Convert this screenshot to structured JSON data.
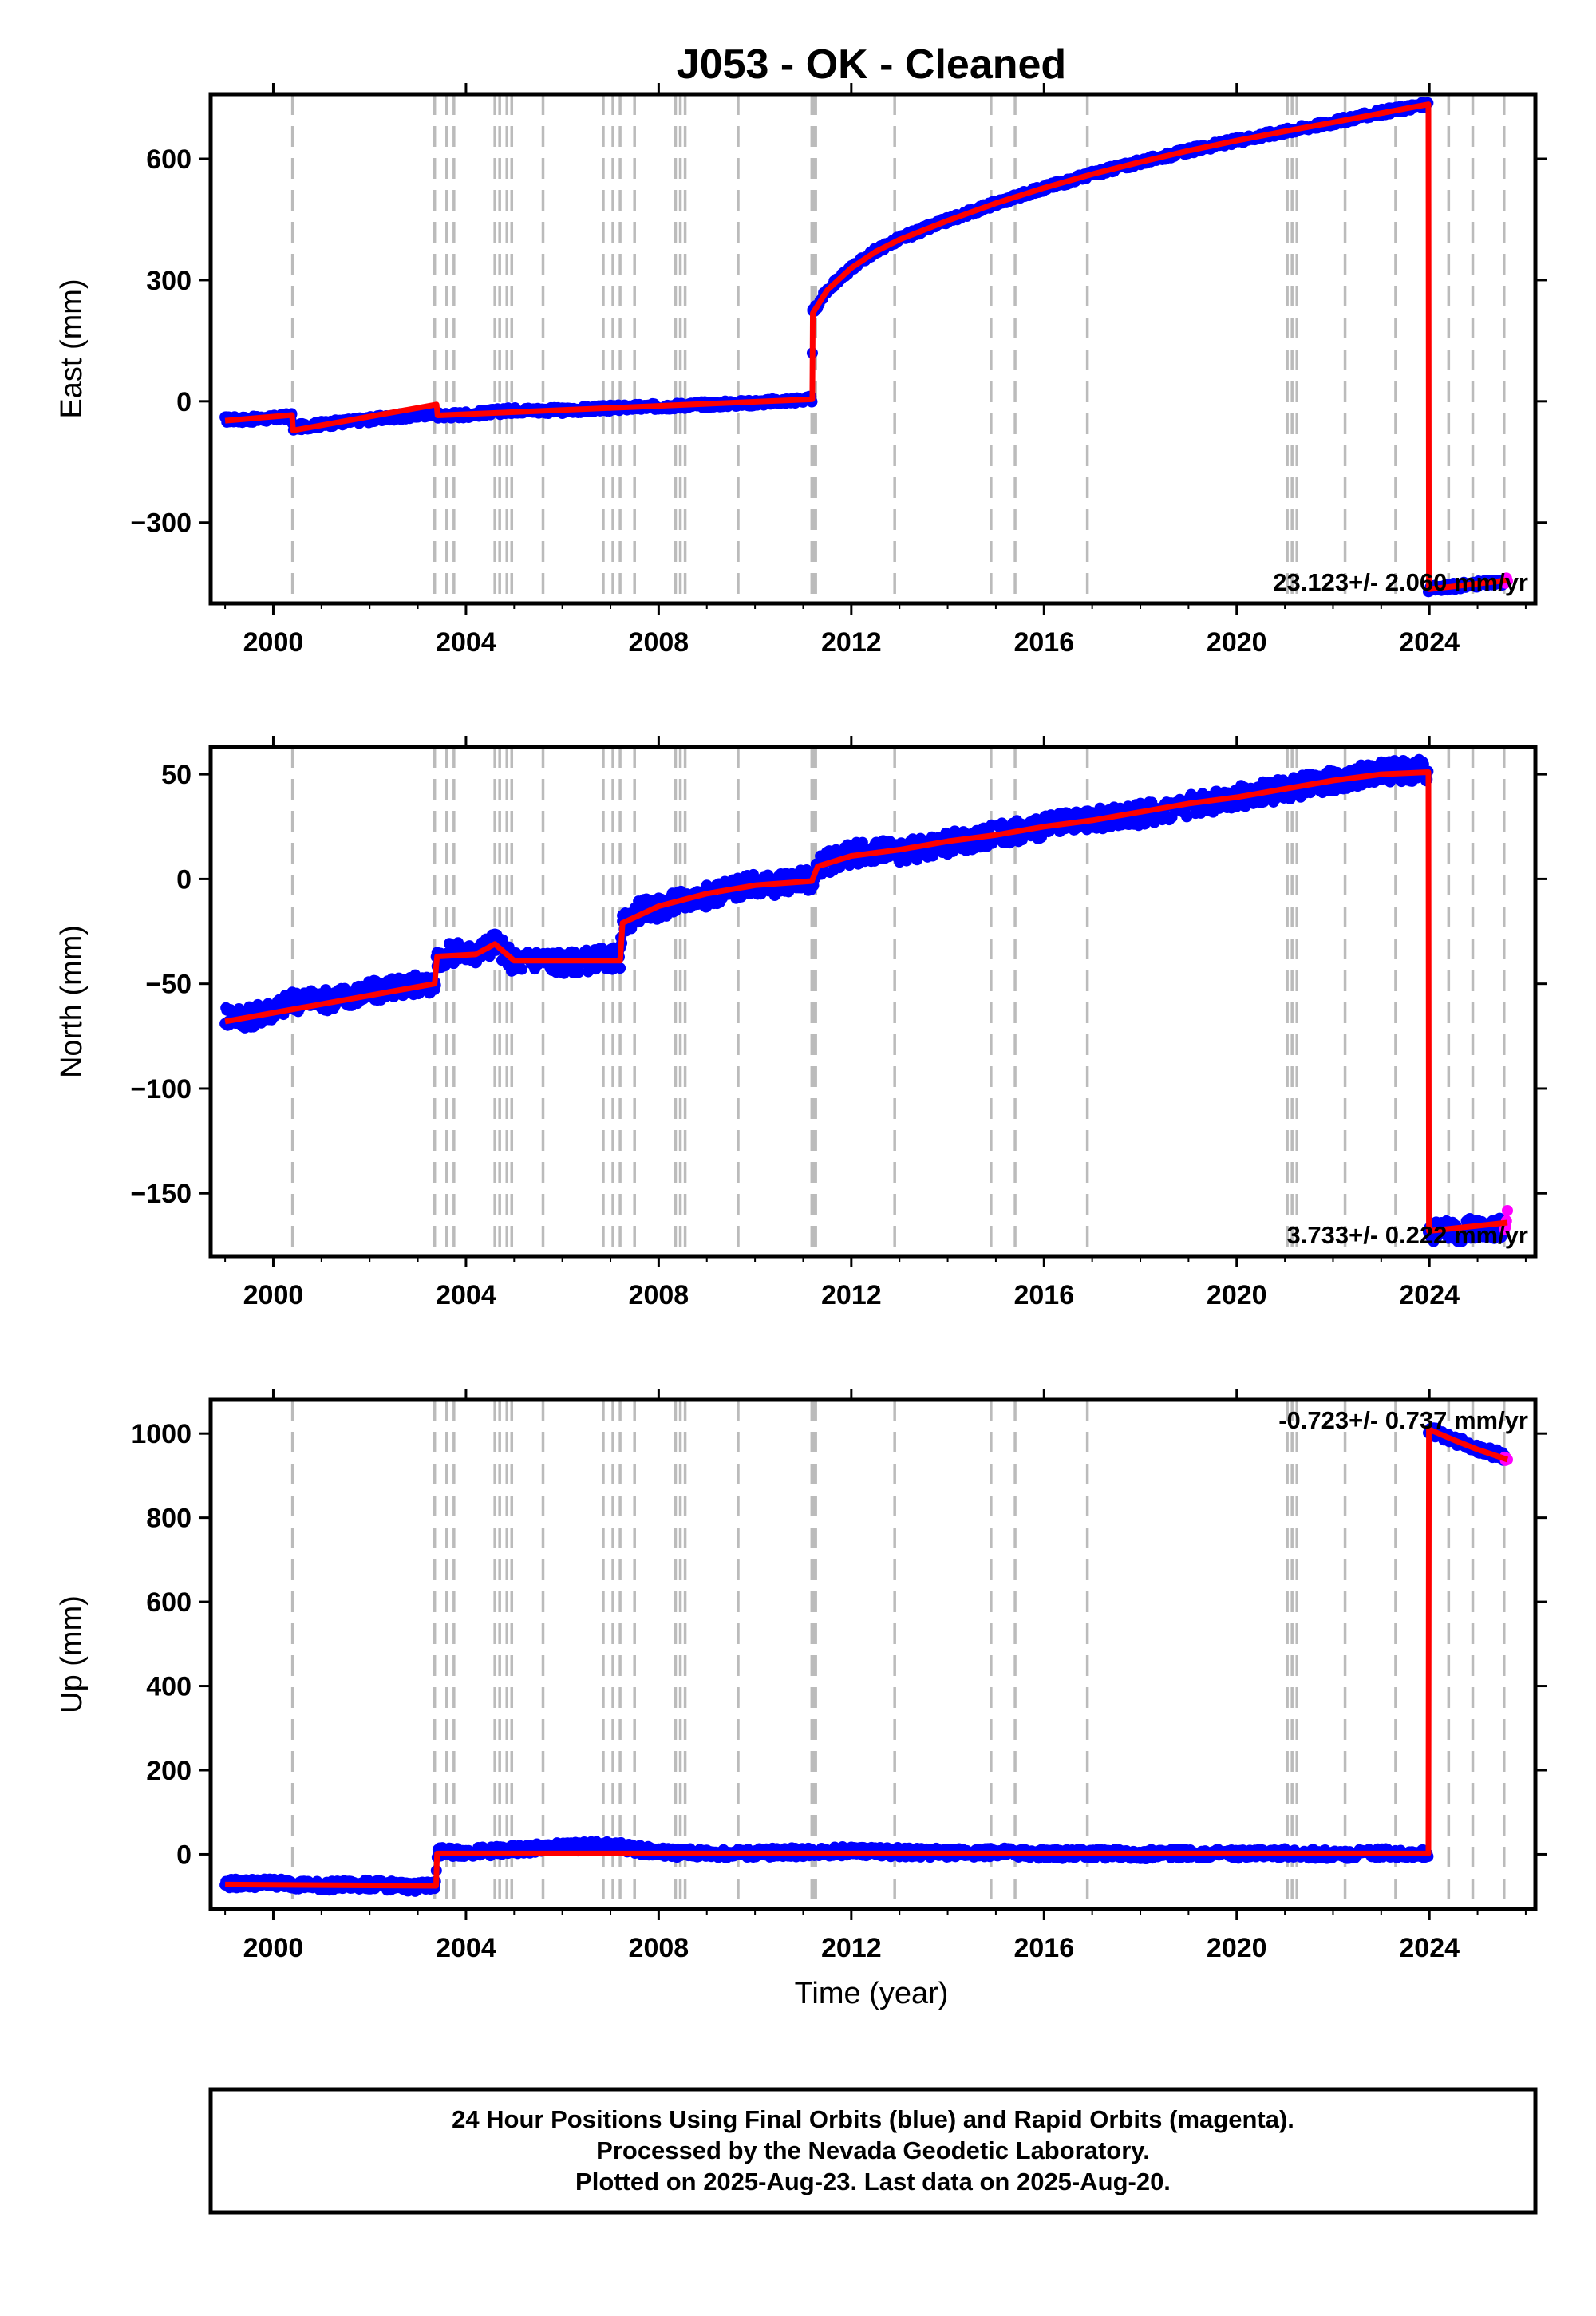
{
  "title": "J053  - OK - Cleaned",
  "xlabel": "Time (year)",
  "caption": {
    "line1": "24 Hour Positions Using Final Orbits (blue) and Rapid Orbits (magenta).",
    "line2": "Processed by the Nevada Geodetic Laboratory.",
    "line3": "Plotted on 2025-Aug-23. Last data on 2025-Aug-20."
  },
  "colors": {
    "final_orbits": "#0000ff",
    "rapid_orbits": "#ff00ff",
    "model": "#ff0000",
    "event_lines": "#bbbbbb"
  },
  "chart_data": [
    {
      "type": "scatter",
      "panel": "east",
      "ylabel": "East (mm)",
      "xlim": [
        1998.7,
        2026.2
      ],
      "ylim": [
        -500,
        760
      ],
      "x_ticks": [
        2000,
        2004,
        2008,
        2012,
        2016,
        2020,
        2024
      ],
      "y_ticks": [
        -300,
        0,
        300,
        600
      ],
      "rate_label": "23.123+/- 2.060 mm/yr",
      "event_lines": [
        2000.4,
        2003.35,
        2003.6,
        2003.75,
        2004.6,
        2004.7,
        2004.85,
        2004.95,
        2005.6,
        2006.85,
        2007.05,
        2007.2,
        2007.5,
        2008.35,
        2008.45,
        2008.55,
        2009.65,
        2011.18,
        2011.22,
        2011.26,
        2012.9,
        2014.9,
        2015.4,
        2016.9,
        2021.05,
        2021.15,
        2021.25,
        2022.25,
        2023.3,
        2024.4,
        2024.9,
        2025.55
      ],
      "series": [
        {
          "key": "final",
          "points": [
            [
              1999.0,
              -45
            ],
            [
              1999.5,
              -45
            ],
            [
              2000.0,
              -42
            ],
            [
              2000.38,
              -36
            ],
            [
              2000.42,
              -65
            ],
            [
              2001.0,
              -57
            ],
            [
              2002.0,
              -45
            ],
            [
              2003.0,
              -34
            ],
            [
              2003.38,
              -28
            ],
            [
              2003.42,
              -35
            ],
            [
              2004.0,
              -33
            ],
            [
              2005.0,
              -22
            ],
            [
              2006.0,
              -23
            ],
            [
              2007.0,
              -17
            ],
            [
              2008.0,
              -13
            ],
            [
              2009.0,
              -8
            ],
            [
              2010.0,
              -4
            ],
            [
              2011.18,
              5
            ],
            [
              2011.2,
              220
            ],
            [
              2011.5,
              275
            ],
            [
              2012.0,
              330
            ],
            [
              2012.5,
              372
            ],
            [
              2013.0,
              402
            ],
            [
              2014.0,
              448
            ],
            [
              2015.0,
              490
            ],
            [
              2016.0,
              528
            ],
            [
              2017.0,
              562
            ],
            [
              2018.0,
              592
            ],
            [
              2019.0,
              620
            ],
            [
              2020.0,
              645
            ],
            [
              2021.0,
              668
            ],
            [
              2022.0,
              690
            ],
            [
              2023.0,
              715
            ],
            [
              2023.97,
              735
            ]
          ]
        },
        {
          "key": "final",
          "points": [
            [
              2023.98,
              -465
            ],
            [
              2024.5,
              -458
            ],
            [
              2025.0,
              -452
            ],
            [
              2025.55,
              -448
            ]
          ]
        },
        {
          "key": "rapid",
          "points": [
            [
              2025.56,
              -444
            ],
            [
              2025.62,
              -442
            ]
          ]
        },
        {
          "key": "model",
          "points": [
            [
              1999.0,
              -48
            ],
            [
              2000.39,
              -34
            ],
            [
              2000.41,
              -72
            ],
            [
              2003.39,
              -8
            ],
            [
              2003.41,
              -35
            ],
            [
              2011.19,
              5
            ],
            [
              2011.2,
              218
            ],
            [
              2011.5,
              275
            ],
            [
              2012.0,
              330
            ],
            [
              2012.5,
              370
            ],
            [
              2013.0,
              400
            ],
            [
              2014.0,
              447
            ],
            [
              2015.0,
              490
            ],
            [
              2016.0,
              528
            ],
            [
              2017.0,
              562
            ],
            [
              2018.0,
              592
            ],
            [
              2019.0,
              620
            ],
            [
              2020.0,
              645
            ],
            [
              2021.0,
              668
            ],
            [
              2022.0,
              690
            ],
            [
              2023.0,
              713
            ],
            [
              2023.98,
              735
            ],
            [
              2023.99,
              -465
            ],
            [
              2025.62,
              -443
            ]
          ]
        }
      ]
    },
    {
      "type": "scatter",
      "panel": "north",
      "ylabel": "North (mm)",
      "xlim": [
        1998.7,
        2026.2
      ],
      "ylim": [
        -180,
        63
      ],
      "x_ticks": [
        2000,
        2004,
        2008,
        2012,
        2016,
        2020,
        2024
      ],
      "y_ticks": [
        -150,
        -100,
        -50,
        0,
        50
      ],
      "rate_label": "3.733+/- 0.222 mm/yr",
      "event_lines": [
        2000.4,
        2003.35,
        2003.6,
        2003.75,
        2004.6,
        2004.7,
        2004.85,
        2004.95,
        2005.6,
        2006.85,
        2007.05,
        2007.2,
        2007.5,
        2008.35,
        2008.45,
        2008.55,
        2009.65,
        2011.18,
        2011.22,
        2011.26,
        2012.9,
        2014.9,
        2015.4,
        2016.9,
        2021.05,
        2021.15,
        2021.25,
        2022.25,
        2023.3,
        2024.4,
        2024.9,
        2025.55
      ],
      "series": [
        {
          "key": "final",
          "points": [
            [
              1999.0,
              -65
            ],
            [
              1999.5,
              -66
            ],
            [
              2000.0,
              -62
            ],
            [
              2000.5,
              -58
            ],
            [
              2001.0,
              -58
            ],
            [
              2001.5,
              -56
            ],
            [
              2002.0,
              -54
            ],
            [
              2002.5,
              -52
            ],
            [
              2003.0,
              -50
            ],
            [
              2003.35,
              -50
            ],
            [
              2003.4,
              -38
            ],
            [
              2003.8,
              -35
            ],
            [
              2004.2,
              -36
            ],
            [
              2004.6,
              -30
            ],
            [
              2005.0,
              -40
            ],
            [
              2005.5,
              -38
            ],
            [
              2006.0,
              -40
            ],
            [
              2006.5,
              -39
            ],
            [
              2007.0,
              -38
            ],
            [
              2007.2,
              -38
            ],
            [
              2007.25,
              -22
            ],
            [
              2007.6,
              -15
            ],
            [
              2008.0,
              -14
            ],
            [
              2008.5,
              -10
            ],
            [
              2009.0,
              -8
            ],
            [
              2009.5,
              -5
            ],
            [
              2010.0,
              -3
            ],
            [
              2010.5,
              -3
            ],
            [
              2011.0,
              1
            ],
            [
              2011.18,
              -2
            ],
            [
              2011.25,
              5
            ],
            [
              2011.7,
              10
            ],
            [
              2012.0,
              12
            ],
            [
              2012.5,
              13
            ],
            [
              2013.0,
              13
            ],
            [
              2014.0,
              17
            ],
            [
              2015.0,
              21
            ],
            [
              2016.0,
              25
            ],
            [
              2017.0,
              28
            ],
            [
              2018.0,
              31
            ],
            [
              2019.0,
              35
            ],
            [
              2020.0,
              39
            ],
            [
              2021.0,
              43
            ],
            [
              2022.0,
              47
            ],
            [
              2023.0,
              51
            ],
            [
              2023.97,
              52
            ]
          ]
        },
        {
          "key": "final",
          "points": [
            [
              2023.98,
              -169
            ],
            [
              2024.5,
              -168
            ],
            [
              2025.0,
              -167
            ],
            [
              2025.55,
              -166
            ]
          ]
        },
        {
          "key": "rapid",
          "points": [
            [
              2025.56,
              -164
            ],
            [
              2025.62,
              -163
            ]
          ]
        },
        {
          "key": "model",
          "points": [
            [
              1999.0,
              -68
            ],
            [
              2003.35,
              -50
            ],
            [
              2003.4,
              -37
            ],
            [
              2004.2,
              -36
            ],
            [
              2004.6,
              -31
            ],
            [
              2005.0,
              -39
            ],
            [
              2007.2,
              -39
            ],
            [
              2007.25,
              -21
            ],
            [
              2008.0,
              -13
            ],
            [
              2009.0,
              -7
            ],
            [
              2010.0,
              -3
            ],
            [
              2011.18,
              -1
            ],
            [
              2011.3,
              6
            ],
            [
              2012.0,
              11
            ],
            [
              2013.0,
              14
            ],
            [
              2014.0,
              18
            ],
            [
              2015.0,
              21
            ],
            [
              2016.0,
              25
            ],
            [
              2017.0,
              28
            ],
            [
              2018.0,
              32
            ],
            [
              2019.0,
              36
            ],
            [
              2020.0,
              39
            ],
            [
              2021.0,
              43
            ],
            [
              2022.0,
              47
            ],
            [
              2023.0,
              50
            ],
            [
              2023.98,
              51
            ],
            [
              2023.99,
              -168
            ],
            [
              2025.62,
              -164
            ]
          ]
        }
      ]
    },
    {
      "type": "scatter",
      "panel": "up",
      "ylabel": "Up (mm)",
      "xlim": [
        1998.7,
        2026.2
      ],
      "ylim": [
        -130,
        1080
      ],
      "x_ticks": [
        2000,
        2004,
        2008,
        2012,
        2016,
        2020,
        2024
      ],
      "y_ticks": [
        0,
        200,
        400,
        600,
        800,
        1000
      ],
      "rate_label": "-0.723+/- 0.737 mm/yr",
      "event_lines": [
        2000.4,
        2003.35,
        2003.6,
        2003.75,
        2004.6,
        2004.7,
        2004.85,
        2004.95,
        2005.6,
        2006.85,
        2007.05,
        2007.2,
        2007.5,
        2008.35,
        2008.45,
        2008.55,
        2009.65,
        2011.18,
        2011.22,
        2011.26,
        2012.9,
        2014.9,
        2015.4,
        2016.9,
        2021.05,
        2021.15,
        2021.25,
        2022.25,
        2023.3,
        2024.4,
        2024.9,
        2025.55
      ],
      "series": [
        {
          "key": "final",
          "points": [
            [
              1999.0,
              -70
            ],
            [
              2000.0,
              -68
            ],
            [
              2001.0,
              -75
            ],
            [
              2002.0,
              -72
            ],
            [
              2003.0,
              -78
            ],
            [
              2003.35,
              -75
            ],
            [
              2003.42,
              5
            ],
            [
              2004.0,
              5
            ],
            [
              2005.0,
              10
            ],
            [
              2006.0,
              18
            ],
            [
              2007.0,
              20
            ],
            [
              2008.0,
              5
            ],
            [
              2009.0,
              2
            ],
            [
              2010.0,
              3
            ],
            [
              2011.0,
              5
            ],
            [
              2012.0,
              8
            ],
            [
              2013.0,
              5
            ],
            [
              2014.0,
              3
            ],
            [
              2015.0,
              5
            ],
            [
              2016.0,
              0
            ],
            [
              2017.0,
              2
            ],
            [
              2018.0,
              0
            ],
            [
              2019.0,
              2
            ],
            [
              2020.0,
              0
            ],
            [
              2021.0,
              3
            ],
            [
              2022.0,
              0
            ],
            [
              2023.0,
              3
            ],
            [
              2023.97,
              0
            ]
          ]
        },
        {
          "key": "final",
          "points": [
            [
              2023.98,
              1010
            ],
            [
              2024.5,
              985
            ],
            [
              2025.0,
              965
            ],
            [
              2025.55,
              945
            ]
          ]
        },
        {
          "key": "rapid",
          "points": [
            [
              2025.56,
              935
            ],
            [
              2025.62,
              930
            ]
          ]
        },
        {
          "key": "model",
          "points": [
            [
              1999.0,
              -72
            ],
            [
              2003.38,
              -75
            ],
            [
              2003.4,
              2
            ],
            [
              2023.98,
              2
            ],
            [
              2023.99,
              1010
            ],
            [
              2024.5,
              985
            ],
            [
              2025.0,
              962
            ],
            [
              2025.62,
              938
            ]
          ]
        }
      ]
    }
  ]
}
